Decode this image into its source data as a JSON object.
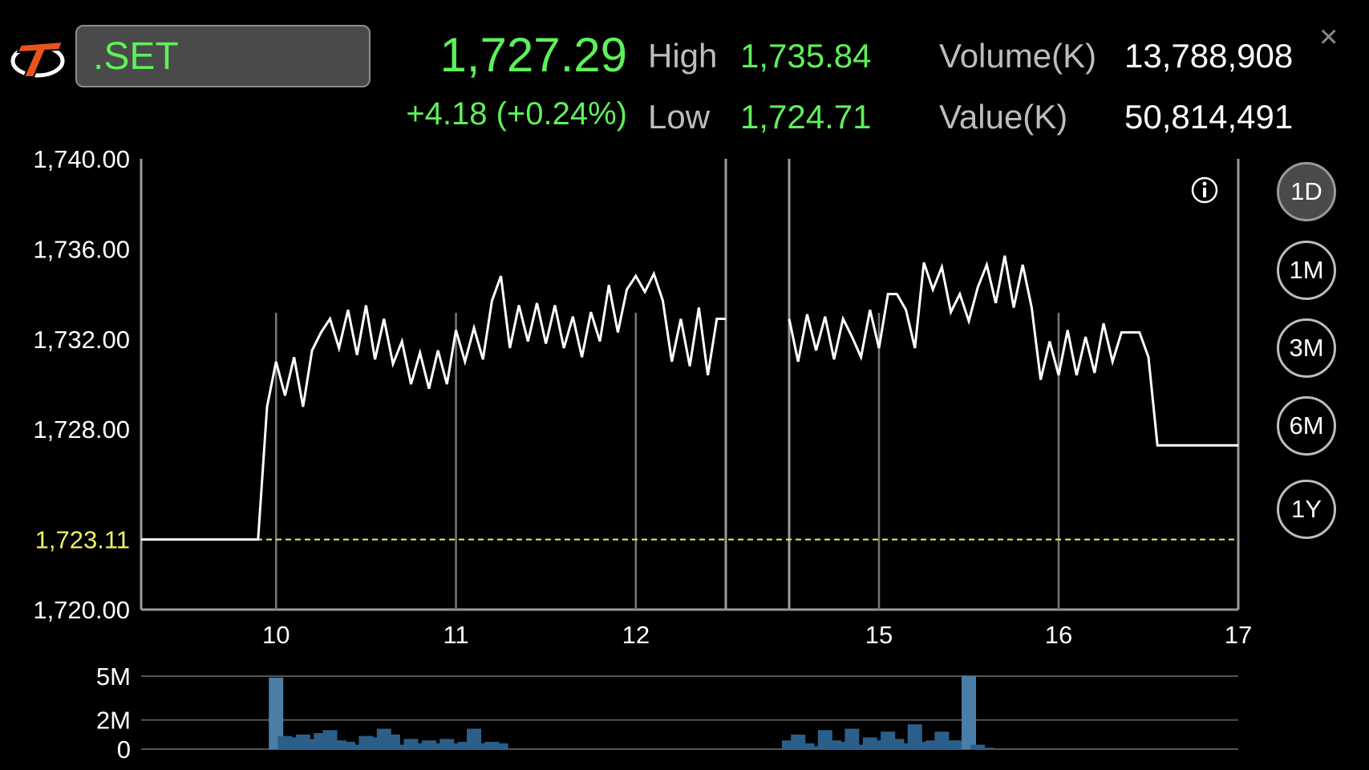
{
  "header": {
    "symbol": ".SET",
    "last_price": "1,727.29",
    "change": "+4.18 (+0.24%)",
    "high_label": "High",
    "high_value": "1,735.84",
    "low_label": "Low",
    "low_value": "1,724.71",
    "volume_label": "Volume(K)",
    "volume_value": "13,788,908",
    "value_label": "Value(K)",
    "value_value": "50,814,491",
    "close_symbol": "×"
  },
  "ranges": [
    {
      "label": "1D",
      "active": true
    },
    {
      "label": "1M",
      "active": false
    },
    {
      "label": "3M",
      "active": false
    },
    {
      "label": "6M",
      "active": false
    },
    {
      "label": "1Y",
      "active": false
    }
  ],
  "colors": {
    "up": "#5ef05a",
    "prev_close": "#f0f060",
    "line": "#ffffff",
    "volume_bar": "#2b5f8a",
    "volume_bar_light": "#4b7ea6"
  },
  "icons": {
    "logo": "trading-app-logo-icon",
    "info": "info-icon",
    "close": "close-icon"
  },
  "chart_data": [
    {
      "type": "line",
      "ylim": [
        1720,
        1740
      ],
      "y_ticks": [
        "1,740.00",
        "1,736.00",
        "1,732.00",
        "1,728.00",
        "1,720.00"
      ],
      "y_tick_values": [
        1740,
        1736,
        1732,
        1728,
        1720
      ],
      "prev_close_label": "1,723.11",
      "prev_close": 1723.11,
      "x_ticks": [
        "10",
        "11",
        "12",
        "15",
        "16",
        "17"
      ],
      "x_tick_values": [
        10,
        11,
        12,
        15,
        16,
        17
      ],
      "x_range": [
        9.25,
        17
      ],
      "break": {
        "start": 12.5,
        "end": 14.5
      },
      "segments": [
        [
          [
            9.25,
            1723.11
          ],
          [
            9.9,
            1723.11
          ],
          [
            9.95,
            1729
          ],
          [
            10.0,
            1731
          ],
          [
            10.05,
            1729.5
          ],
          [
            10.1,
            1731.2
          ],
          [
            10.15,
            1729
          ],
          [
            10.2,
            1731.5
          ],
          [
            10.25,
            1732.3
          ],
          [
            10.3,
            1732.9
          ],
          [
            10.35,
            1731.6
          ],
          [
            10.4,
            1733.3
          ],
          [
            10.45,
            1731.3
          ],
          [
            10.5,
            1733.5
          ],
          [
            10.55,
            1731.1
          ],
          [
            10.6,
            1732.9
          ],
          [
            10.65,
            1730.9
          ],
          [
            10.7,
            1731.9
          ],
          [
            10.75,
            1730
          ],
          [
            10.8,
            1731.4
          ],
          [
            10.85,
            1729.8
          ],
          [
            10.9,
            1731.5
          ],
          [
            10.95,
            1730
          ],
          [
            11.0,
            1732.4
          ],
          [
            11.05,
            1731.0
          ],
          [
            11.1,
            1732.5
          ],
          [
            11.15,
            1731.1
          ],
          [
            11.2,
            1733.7
          ],
          [
            11.25,
            1734.8
          ],
          [
            11.3,
            1731.6
          ],
          [
            11.35,
            1733.5
          ],
          [
            11.4,
            1731.9
          ],
          [
            11.45,
            1733.6
          ],
          [
            11.5,
            1731.8
          ],
          [
            11.55,
            1733.5
          ],
          [
            11.6,
            1731.6
          ],
          [
            11.65,
            1733.0
          ],
          [
            11.7,
            1731.2
          ],
          [
            11.75,
            1733.2
          ],
          [
            11.8,
            1731.9
          ],
          [
            11.85,
            1734.4
          ],
          [
            11.9,
            1732.3
          ],
          [
            11.95,
            1734.2
          ],
          [
            12.0,
            1734.8
          ],
          [
            12.05,
            1734.1
          ],
          [
            12.1,
            1734.9
          ],
          [
            12.15,
            1733.7
          ],
          [
            12.2,
            1731.0
          ],
          [
            12.25,
            1732.9
          ],
          [
            12.3,
            1730.8
          ],
          [
            12.35,
            1733.4
          ],
          [
            12.4,
            1730.4
          ],
          [
            12.45,
            1732.9
          ],
          [
            12.5,
            1732.9
          ]
        ],
        [
          [
            14.5,
            1732.9
          ],
          [
            14.55,
            1731.0
          ],
          [
            14.6,
            1733.1
          ],
          [
            14.65,
            1731.5
          ],
          [
            14.7,
            1733.0
          ],
          [
            14.75,
            1731.1
          ],
          [
            14.8,
            1732.9
          ],
          [
            14.85,
            1732.1
          ],
          [
            14.9,
            1731.2
          ],
          [
            14.95,
            1733.3
          ],
          [
            15.0,
            1731.6
          ],
          [
            15.05,
            1734.0
          ],
          [
            15.1,
            1734.0
          ],
          [
            15.15,
            1733.3
          ],
          [
            15.2,
            1731.6
          ],
          [
            15.25,
            1735.4
          ],
          [
            15.3,
            1734.2
          ],
          [
            15.35,
            1735.2
          ],
          [
            15.4,
            1733.2
          ],
          [
            15.45,
            1734.0
          ],
          [
            15.5,
            1732.8
          ],
          [
            15.55,
            1734.3
          ],
          [
            15.6,
            1735.3
          ],
          [
            15.65,
            1733.6
          ],
          [
            15.7,
            1735.7
          ],
          [
            15.75,
            1733.4
          ],
          [
            15.8,
            1735.3
          ],
          [
            15.85,
            1733.4
          ],
          [
            15.9,
            1730.2
          ],
          [
            15.95,
            1731.9
          ],
          [
            16.0,
            1730.4
          ],
          [
            16.05,
            1732.4
          ],
          [
            16.1,
            1730.4
          ],
          [
            16.15,
            1732.1
          ],
          [
            16.2,
            1730.5
          ],
          [
            16.25,
            1732.7
          ],
          [
            16.3,
            1731.0
          ],
          [
            16.35,
            1732.3
          ],
          [
            16.4,
            1732.3
          ],
          [
            16.45,
            1732.3
          ],
          [
            16.5,
            1731.2
          ],
          [
            16.55,
            1727.29
          ],
          [
            17.0,
            1727.29
          ]
        ]
      ]
    },
    {
      "type": "bar",
      "y_ticks": [
        "5M",
        "2M",
        "0"
      ],
      "y_tick_values": [
        5,
        2,
        0
      ],
      "ylim": [
        0,
        5
      ],
      "unit": "M",
      "bars": [
        [
          10.0,
          4.9
        ],
        [
          10.05,
          0.9
        ],
        [
          10.1,
          0.8
        ],
        [
          10.15,
          1.0
        ],
        [
          10.2,
          0.7
        ],
        [
          10.25,
          1.1
        ],
        [
          10.3,
          1.3
        ],
        [
          10.35,
          0.6
        ],
        [
          10.4,
          0.5
        ],
        [
          10.45,
          0.3
        ],
        [
          10.5,
          0.9
        ],
        [
          10.55,
          0.8
        ],
        [
          10.6,
          1.4
        ],
        [
          10.65,
          1.0
        ],
        [
          10.7,
          0.3
        ],
        [
          10.75,
          0.7
        ],
        [
          10.8,
          0.4
        ],
        [
          10.85,
          0.6
        ],
        [
          10.9,
          0.4
        ],
        [
          10.95,
          0.7
        ],
        [
          11.0,
          0.4
        ],
        [
          11.05,
          0.5
        ],
        [
          11.1,
          1.4
        ],
        [
          11.15,
          0.4
        ],
        [
          11.2,
          0.5
        ],
        [
          11.25,
          0.4
        ],
        [
          14.5,
          0.6
        ],
        [
          14.55,
          1.0
        ],
        [
          14.6,
          0.4
        ],
        [
          14.65,
          0.2
        ],
        [
          14.7,
          1.3
        ],
        [
          14.75,
          0.6
        ],
        [
          14.8,
          0.5
        ],
        [
          14.85,
          1.4
        ],
        [
          14.9,
          0.3
        ],
        [
          14.95,
          0.8
        ],
        [
          15.0,
          0.6
        ],
        [
          15.05,
          1.2
        ],
        [
          15.1,
          0.7
        ],
        [
          15.15,
          0.4
        ],
        [
          15.2,
          1.7
        ],
        [
          15.25,
          0.5
        ],
        [
          15.3,
          0.6
        ],
        [
          15.35,
          1.2
        ],
        [
          15.4,
          0.6
        ],
        [
          15.45,
          0.6
        ],
        [
          15.5,
          5.0
        ],
        [
          15.55,
          0.3
        ],
        [
          15.6,
          0.1
        ]
      ]
    }
  ]
}
